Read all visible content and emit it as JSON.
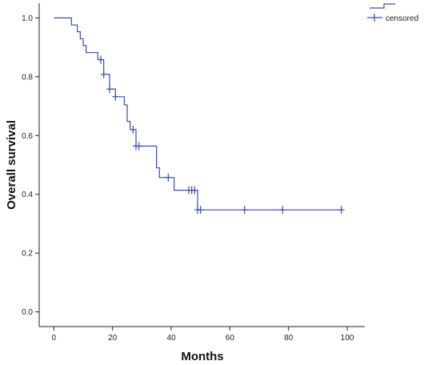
{
  "chart_data": {
    "type": "line",
    "subtype": "kaplan-meier",
    "xlabel": "Months",
    "ylabel": "Overall survival",
    "xlim": [
      -5,
      106
    ],
    "ylim": [
      -0.05,
      1.05
    ],
    "x_ticks": [
      0,
      20,
      40,
      60,
      80,
      100
    ],
    "y_ticks": [
      0.0,
      0.2,
      0.4,
      0.6,
      0.8,
      1.0
    ],
    "x_tick_labels": [
      "0",
      "20",
      "40",
      "60",
      "80",
      "100"
    ],
    "y_tick_labels": [
      "0.0",
      "0.2",
      "0.4",
      "0.6",
      "0.8",
      "1.0"
    ],
    "grid": false,
    "legend": {
      "position": "top-right",
      "entries": [
        {
          "label": "",
          "marker": "step-line"
        },
        {
          "label": "censored",
          "marker": "plus"
        }
      ]
    },
    "colors": {
      "series": "#3a4fa3",
      "axis": "#222222",
      "tick_text": "#222222"
    },
    "series": [
      {
        "steps": [
          {
            "x": 0,
            "y": 1.0
          },
          {
            "x": 6,
            "y": 1.0
          },
          {
            "x": 6,
            "y": 0.976
          },
          {
            "x": 8,
            "y": 0.976
          },
          {
            "x": 8,
            "y": 0.953
          },
          {
            "x": 9,
            "y": 0.953
          },
          {
            "x": 9,
            "y": 0.929
          },
          {
            "x": 10,
            "y": 0.929
          },
          {
            "x": 10,
            "y": 0.906
          },
          {
            "x": 11,
            "y": 0.906
          },
          {
            "x": 11,
            "y": 0.882
          },
          {
            "x": 15,
            "y": 0.882
          },
          {
            "x": 15,
            "y": 0.858
          },
          {
            "x": 17,
            "y": 0.858
          },
          {
            "x": 17,
            "y": 0.808
          },
          {
            "x": 19,
            "y": 0.808
          },
          {
            "x": 19,
            "y": 0.758
          },
          {
            "x": 21,
            "y": 0.758
          },
          {
            "x": 21,
            "y": 0.732
          },
          {
            "x": 24,
            "y": 0.732
          },
          {
            "x": 24,
            "y": 0.704
          },
          {
            "x": 25,
            "y": 0.704
          },
          {
            "x": 25,
            "y": 0.648
          },
          {
            "x": 26,
            "y": 0.648
          },
          {
            "x": 26,
            "y": 0.62
          },
          {
            "x": 28,
            "y": 0.62
          },
          {
            "x": 28,
            "y": 0.564
          },
          {
            "x": 35,
            "y": 0.564
          },
          {
            "x": 35,
            "y": 0.49
          },
          {
            "x": 36,
            "y": 0.49
          },
          {
            "x": 36,
            "y": 0.457
          },
          {
            "x": 41,
            "y": 0.457
          },
          {
            "x": 41,
            "y": 0.414
          },
          {
            "x": 49,
            "y": 0.414
          },
          {
            "x": 49,
            "y": 0.347
          },
          {
            "x": 98,
            "y": 0.347
          }
        ],
        "censored": [
          {
            "x": 16,
            "y": 0.858
          },
          {
            "x": 17,
            "y": 0.808
          },
          {
            "x": 19,
            "y": 0.758
          },
          {
            "x": 21,
            "y": 0.732
          },
          {
            "x": 27,
            "y": 0.62
          },
          {
            "x": 28,
            "y": 0.564
          },
          {
            "x": 29,
            "y": 0.564
          },
          {
            "x": 39,
            "y": 0.457
          },
          {
            "x": 46,
            "y": 0.414
          },
          {
            "x": 47,
            "y": 0.414
          },
          {
            "x": 48,
            "y": 0.414
          },
          {
            "x": 49,
            "y": 0.347
          },
          {
            "x": 50,
            "y": 0.347
          },
          {
            "x": 65,
            "y": 0.347
          },
          {
            "x": 78,
            "y": 0.347
          },
          {
            "x": 98,
            "y": 0.347
          }
        ]
      }
    ]
  }
}
